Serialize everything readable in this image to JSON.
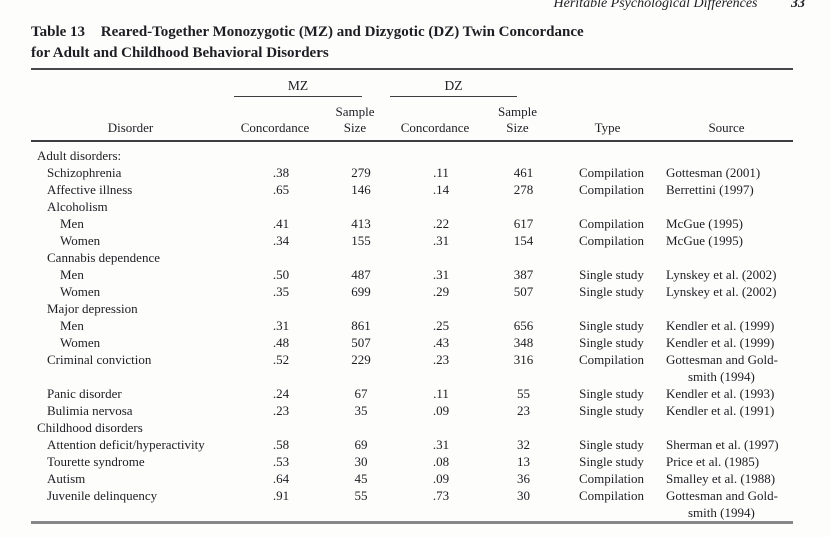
{
  "page_header": {
    "running_head": "Heritable Psychological Differences",
    "page_number": "33"
  },
  "table": {
    "caption": {
      "label": "Table 13",
      "title_line1": "Reared-Together Monozygotic (MZ) and Dizygotic (DZ) Twin Concordance",
      "title_line2": "for Adult and Childhood Behavioral Disorders"
    },
    "column_groups": {
      "mz": "MZ",
      "dz": "DZ"
    },
    "columns": {
      "disorder": "Disorder",
      "concordance": "Concordance",
      "sample_line1": "Sample",
      "sample_line2": "Size",
      "type": "Type",
      "source": "Source"
    },
    "rows": [
      {
        "label": "Adult disorders:",
        "indent": 0,
        "mz_c": "",
        "mz_n": "",
        "dz_c": "",
        "dz_n": "",
        "type": "",
        "source": ""
      },
      {
        "label": "Schizophrenia",
        "indent": 1,
        "mz_c": ".38",
        "mz_n": "279",
        "dz_c": ".11",
        "dz_n": "461",
        "type": "Compilation",
        "source": "Gottesman (2001)"
      },
      {
        "label": "Affective illness",
        "indent": 1,
        "mz_c": ".65",
        "mz_n": "146",
        "dz_c": ".14",
        "dz_n": "278",
        "type": "Compilation",
        "source": "Berrettini (1997)"
      },
      {
        "label": "Alcoholism",
        "indent": 1,
        "mz_c": "",
        "mz_n": "",
        "dz_c": "",
        "dz_n": "",
        "type": "",
        "source": ""
      },
      {
        "label": "Men",
        "indent": 2,
        "mz_c": ".41",
        "mz_n": "413",
        "dz_c": ".22",
        "dz_n": "617",
        "type": "Compilation",
        "source": "McGue (1995)"
      },
      {
        "label": "Women",
        "indent": 2,
        "mz_c": ".34",
        "mz_n": "155",
        "dz_c": ".31",
        "dz_n": "154",
        "type": "Compilation",
        "source": "McGue (1995)"
      },
      {
        "label": "Cannabis dependence",
        "indent": 1,
        "mz_c": "",
        "mz_n": "",
        "dz_c": "",
        "dz_n": "",
        "type": "",
        "source": ""
      },
      {
        "label": "Men",
        "indent": 2,
        "mz_c": ".50",
        "mz_n": "487",
        "dz_c": ".31",
        "dz_n": "387",
        "type": "Single study",
        "source": "Lynskey et al. (2002)"
      },
      {
        "label": "Women",
        "indent": 2,
        "mz_c": ".35",
        "mz_n": "699",
        "dz_c": ".29",
        "dz_n": "507",
        "type": "Single study",
        "source": "Lynskey et al. (2002)"
      },
      {
        "label": "Major depression",
        "indent": 1,
        "mz_c": "",
        "mz_n": "",
        "dz_c": "",
        "dz_n": "",
        "type": "",
        "source": ""
      },
      {
        "label": "Men",
        "indent": 2,
        "mz_c": ".31",
        "mz_n": "861",
        "dz_c": ".25",
        "dz_n": "656",
        "type": "Single study",
        "source": "Kendler et al. (1999)"
      },
      {
        "label": "Women",
        "indent": 2,
        "mz_c": ".48",
        "mz_n": "507",
        "dz_c": ".43",
        "dz_n": "348",
        "type": "Single study",
        "source": "Kendler et al. (1999)"
      },
      {
        "label": "Criminal conviction",
        "indent": 1,
        "mz_c": ".52",
        "mz_n": "229",
        "dz_c": ".23",
        "dz_n": "316",
        "type": "Compilation",
        "source": "Gottesman and Gold-",
        "source2": "smith (1994)"
      },
      {
        "label": "Panic disorder",
        "indent": 1,
        "mz_c": ".24",
        "mz_n": "67",
        "dz_c": ".11",
        "dz_n": "55",
        "type": "Single study",
        "source": "Kendler et al. (1993)"
      },
      {
        "label": "Bulimia nervosa",
        "indent": 1,
        "mz_c": ".23",
        "mz_n": "35",
        "dz_c": ".09",
        "dz_n": "23",
        "type": "Single study",
        "source": "Kendler et al. (1991)"
      },
      {
        "label": "Childhood disorders",
        "indent": 0,
        "mz_c": "",
        "mz_n": "",
        "dz_c": "",
        "dz_n": "",
        "type": "",
        "source": ""
      },
      {
        "label": "Attention deficit/hyperactivity",
        "indent": 1,
        "mz_c": ".58",
        "mz_n": "69",
        "dz_c": ".31",
        "dz_n": "32",
        "type": "Single study",
        "source": "Sherman et al. (1997)"
      },
      {
        "label": "Tourette syndrome",
        "indent": 1,
        "mz_c": ".53",
        "mz_n": "30",
        "dz_c": ".08",
        "dz_n": "13",
        "type": "Single study",
        "source": "Price et al. (1985)"
      },
      {
        "label": "Autism",
        "indent": 1,
        "mz_c": ".64",
        "mz_n": "45",
        "dz_c": ".09",
        "dz_n": "36",
        "type": "Compilation",
        "source": "Smalley et al. (1988)"
      },
      {
        "label": "Juvenile delinquency",
        "indent": 1,
        "mz_c": ".91",
        "mz_n": "55",
        "dz_c": ".73",
        "dz_n": "30",
        "type": "Compilation",
        "source": "Gottesman and Gold-",
        "source2": "smith (1994)"
      }
    ]
  },
  "colors": {
    "text": "#1d1d23",
    "rule_dark": "#3e3e42",
    "rule_bottom_gray": "#87878a",
    "background": "#fdfdfc"
  }
}
